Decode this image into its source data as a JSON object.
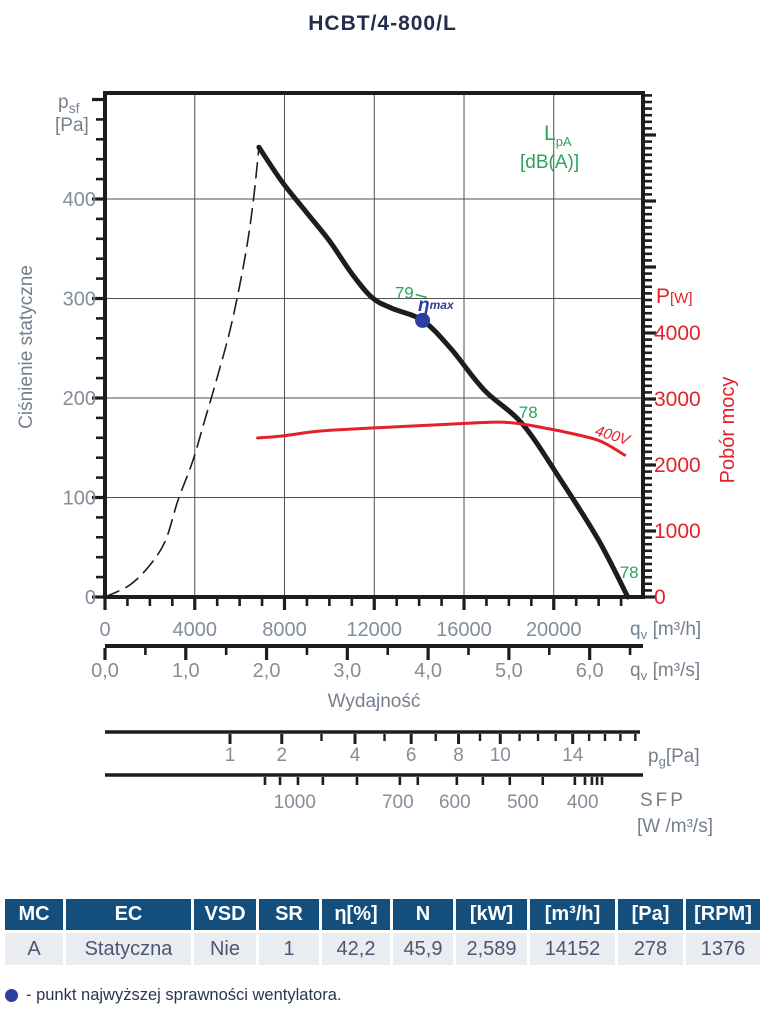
{
  "title": "HCBT/4-800/L",
  "labels": {
    "psf_main": "p",
    "psf_sub": "sf",
    "psf_unit": "[Pa]",
    "lpa_main": "L",
    "lpa_sub": "pA",
    "lpa_unit": "[dB(A)]",
    "pw_main": "P",
    "pw_unit": "[W]",
    "pobor_mocy": "Pobór mocy",
    "cisnienie_statyczne": "Ciśnienie statyczne",
    "q_main": "q",
    "q_sub": "v",
    "q_h_unit": "[m³/h]",
    "q_s_unit": "[m³/s]",
    "wydajnosc": "Wydajność",
    "pg_main": "p",
    "pg_sub": "g",
    "pg_unit": "[Pa]",
    "sfp_label": "SFP",
    "sfp_unit": "[W /m³/s]",
    "voltage_label": "400V",
    "eta_main": "η",
    "eta_sub": "max"
  },
  "chart_data": {
    "type": "line",
    "title": "HCBT/4-800/L",
    "x_axis_m3h": {
      "label": "qv [m³/h]",
      "ticks": [
        0,
        4000,
        8000,
        12000,
        16000,
        20000
      ],
      "minor_step": 1000,
      "minor_max": 23000,
      "gridlines": [
        4000,
        8000,
        12000,
        16000,
        20000
      ],
      "range": [
        0,
        23960
      ]
    },
    "x_axis_m3s": {
      "label": "qv [m³/s]",
      "tick_labels": [
        "0,0",
        "1,0",
        "2,0",
        "3,0",
        "4,0",
        "5,0",
        "6,0"
      ],
      "minor_step": 0.5,
      "max": 6.5,
      "axis_title": "Wydajność"
    },
    "y_axis_left": {
      "label": "Ciśnienie statyczne psf [Pa]",
      "ticks": [
        0,
        100,
        200,
        300,
        400
      ],
      "minor_step": 20,
      "minor_max": 500,
      "gridlines": [
        100,
        200,
        300,
        400
      ],
      "range": [
        0,
        507
      ]
    },
    "y_axis_right": {
      "label": "Pobór mocy P [W]",
      "ticks": [
        0,
        1000,
        2000,
        3000,
        4000
      ],
      "major_step": 1000,
      "major_max": 7000,
      "minor_step": 100,
      "minor_max": 7600,
      "range": [
        0,
        7640
      ]
    },
    "pg_axis": {
      "label": "pg [Pa]",
      "tick_values": [
        1,
        2,
        3,
        4,
        5,
        6,
        7,
        8,
        9,
        10,
        11,
        12,
        13,
        14,
        15,
        16,
        17,
        18
      ],
      "label_values": [
        1,
        2,
        4,
        6,
        8,
        10,
        14
      ]
    },
    "sfp_axis": {
      "label": "SFP [W/m³/s]",
      "labels": [
        {
          "value": "1000",
          "q_m3h": 8460
        },
        {
          "value": "700",
          "q_m3h": 13050
        },
        {
          "value": "600",
          "q_m3h": 15590
        },
        {
          "value": "500",
          "q_m3h": 18620
        },
        {
          "value": "400",
          "q_m3h": 21290
        }
      ],
      "ticks_q_m3h": [
        7130,
        7800,
        8600,
        9710,
        11230,
        13140,
        13940,
        15680,
        16840,
        18040,
        19510,
        20940,
        21390,
        21700,
        21930,
        22150
      ]
    },
    "series": [
      {
        "name": "static-pressure-stall-region",
        "style": "dashed",
        "axis": "left",
        "color": "#1d1d1b",
        "points": [
          [
            0,
            0
          ],
          [
            1100,
            12
          ],
          [
            2000,
            32
          ],
          [
            2700,
            57
          ],
          [
            3250,
            97
          ],
          [
            3900,
            136
          ],
          [
            4450,
            178
          ],
          [
            5030,
            223
          ],
          [
            5570,
            268
          ],
          [
            6010,
            314
          ],
          [
            6370,
            359
          ],
          [
            6640,
            404
          ],
          [
            6860,
            452
          ]
        ]
      },
      {
        "name": "static-pressure",
        "style": "solid",
        "axis": "left",
        "color": "#1d1d1b",
        "points": [
          [
            6860,
            452
          ],
          [
            7900,
            417
          ],
          [
            9000,
            386
          ],
          [
            10000,
            358
          ],
          [
            11000,
            325
          ],
          [
            11900,
            301
          ],
          [
            12800,
            290
          ],
          [
            14152,
            278
          ],
          [
            15400,
            250
          ],
          [
            16900,
            208
          ],
          [
            18600,
            174
          ],
          [
            20300,
            118
          ],
          [
            22000,
            57
          ],
          [
            23300,
            0
          ]
        ]
      },
      {
        "name": "power-400V",
        "style": "solid",
        "axis": "right",
        "color": "#e32129",
        "points": [
          [
            6800,
            2410
          ],
          [
            7900,
            2440
          ],
          [
            9600,
            2515
          ],
          [
            11900,
            2560
          ],
          [
            14500,
            2605
          ],
          [
            16300,
            2635
          ],
          [
            17600,
            2650
          ],
          [
            18600,
            2620
          ],
          [
            19600,
            2560
          ],
          [
            20700,
            2485
          ],
          [
            22050,
            2365
          ],
          [
            23160,
            2150
          ]
        ]
      }
    ],
    "best_efficiency_point": {
      "q_m3h": 14152,
      "p_Pa": 278
    },
    "noise_labels": [
      {
        "text": "79",
        "q_m3h": 13760,
        "p_Pa": 300,
        "anchor": "end",
        "connector": true
      },
      {
        "text": "78",
        "q_m3h": 18440,
        "p_Pa": 180,
        "anchor": "start",
        "connector": false
      },
      {
        "text": "78",
        "q_m3h": 22940,
        "p_Pa": 19,
        "anchor": "start",
        "connector": false
      }
    ],
    "voltage_annotation": {
      "label": "400V",
      "q_m3h": 22540,
      "p_W": 2400,
      "rotation_deg": 17
    }
  },
  "table": {
    "headers": [
      "MC",
      "EC",
      "VSD",
      "SR",
      "η[%]",
      "N",
      "[kW]",
      "[m³/h]",
      "[Pa]",
      "[RPM]"
    ],
    "row": [
      "A",
      "Statyczna",
      "Nie",
      "1",
      "42,2",
      "45,9",
      "2,589",
      "14152",
      "278",
      "1376"
    ]
  },
  "note": {
    "text": "- punkt najwyższej sprawności wentylatora."
  },
  "colors": {
    "accent_blue": "#2c3f9e",
    "table_header_blue": "#134e7d",
    "curve_red": "#e32129",
    "label_green": "#2fa25c"
  }
}
